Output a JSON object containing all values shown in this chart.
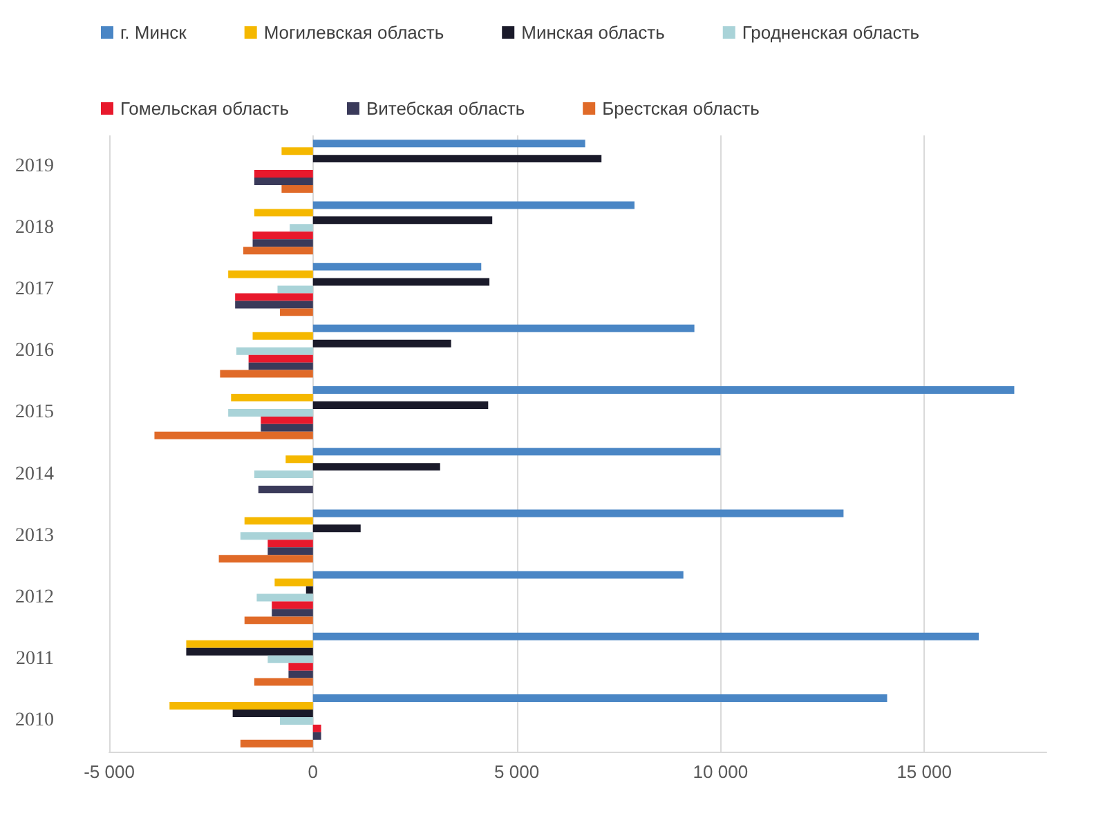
{
  "chart_data": {
    "type": "bar",
    "orientation": "horizontal",
    "categories": [
      "2019",
      "2018",
      "2017",
      "2016",
      "2015",
      "2014",
      "2013",
      "2012",
      "2011",
      "2010"
    ],
    "series": [
      {
        "name": "г. Минск",
        "color": "#4a86c5",
        "values": [
          6680,
          7890,
          4130,
          9360,
          17210,
          10000,
          13020,
          9090,
          16340,
          14090
        ]
      },
      {
        "name": "Могилевская область",
        "color": "#f5b800",
        "values": [
          -770,
          -1440,
          -2080,
          -1480,
          -2010,
          -670,
          -1680,
          -940,
          -3110,
          -3520
        ]
      },
      {
        "name": "Минская область",
        "color": "#1a1a2a",
        "values": [
          7080,
          4400,
          4330,
          3390,
          4300,
          3120,
          1170,
          -170,
          -3110,
          -1970
        ]
      },
      {
        "name": "Гродненская область",
        "color": "#a9d3d8",
        "values": [
          null,
          -570,
          -870,
          -1880,
          -2080,
          -1440,
          -1780,
          -1380,
          -1110,
          -810
        ]
      },
      {
        "name": "Гомельская область",
        "color": "#e8192c",
        "values": [
          -1440,
          -1480,
          -1910,
          -1580,
          -1280,
          null,
          -1110,
          -1010,
          -600,
          200
        ]
      },
      {
        "name": "Витебская область",
        "color": "#3a3a5a",
        "values": [
          -1440,
          -1480,
          -1910,
          -1580,
          -1280,
          -1340,
          -1110,
          -1010,
          -600,
          200
        ]
      },
      {
        "name": "Брестская область",
        "color": "#e06a28",
        "values": [
          -770,
          -1710,
          -810,
          -2280,
          -3890,
          null,
          -2310,
          -1680,
          -1440,
          -1780
        ]
      }
    ],
    "xlim": [
      -5000,
      18000
    ],
    "xticks": [
      {
        "value": -5000,
        "label": "-5 000"
      },
      0,
      {
        "value": 5000,
        "label": "5 000"
      },
      {
        "value": 10000,
        "label": "10 000"
      },
      {
        "value": 15000,
        "label": "15 000"
      }
    ],
    "grid": "x",
    "legend": "top"
  }
}
